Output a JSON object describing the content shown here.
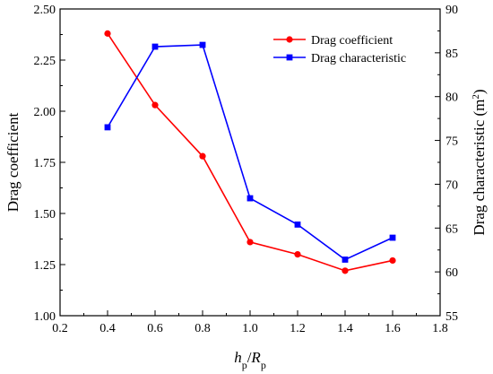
{
  "chart_data": {
    "type": "line",
    "x": [
      0.4,
      0.6,
      0.8,
      1.0,
      1.2,
      1.4,
      1.6
    ],
    "series": [
      {
        "name": "Drag coefficient",
        "axis": "left",
        "color": "#ff0000",
        "marker": "circle",
        "values": [
          2.38,
          2.03,
          1.78,
          1.36,
          1.3,
          1.22,
          1.27
        ]
      },
      {
        "name": "Drag characteristic",
        "axis": "right",
        "color": "#0000ff",
        "marker": "square",
        "values": [
          76.5,
          85.7,
          85.9,
          68.4,
          65.4,
          61.4,
          63.9
        ]
      }
    ],
    "xlabel": {
      "main": "h",
      "sub1": "p",
      "sep": "/",
      "main2": "R",
      "sub2": "p"
    },
    "ylabel_left": "Drag coefficient",
    "ylabel_right": {
      "text": "Drag characteristic (m",
      "sup": "2",
      "close": ")"
    },
    "xlim": [
      0.2,
      1.8
    ],
    "ylim_left": [
      1.0,
      2.5
    ],
    "ylim_right": [
      55,
      90
    ],
    "x_ticks": [
      "0.2",
      "0.4",
      "0.6",
      "0.8",
      "1.0",
      "1.2",
      "1.4",
      "1.6",
      "1.8"
    ],
    "y_ticks_left": [
      "1.00",
      "1.25",
      "1.50",
      "1.75",
      "2.00",
      "2.25",
      "2.50"
    ],
    "y_ticks_right": [
      "55",
      "60",
      "65",
      "70",
      "75",
      "80",
      "85",
      "90"
    ],
    "grid": false,
    "legend_position": "top-right"
  }
}
